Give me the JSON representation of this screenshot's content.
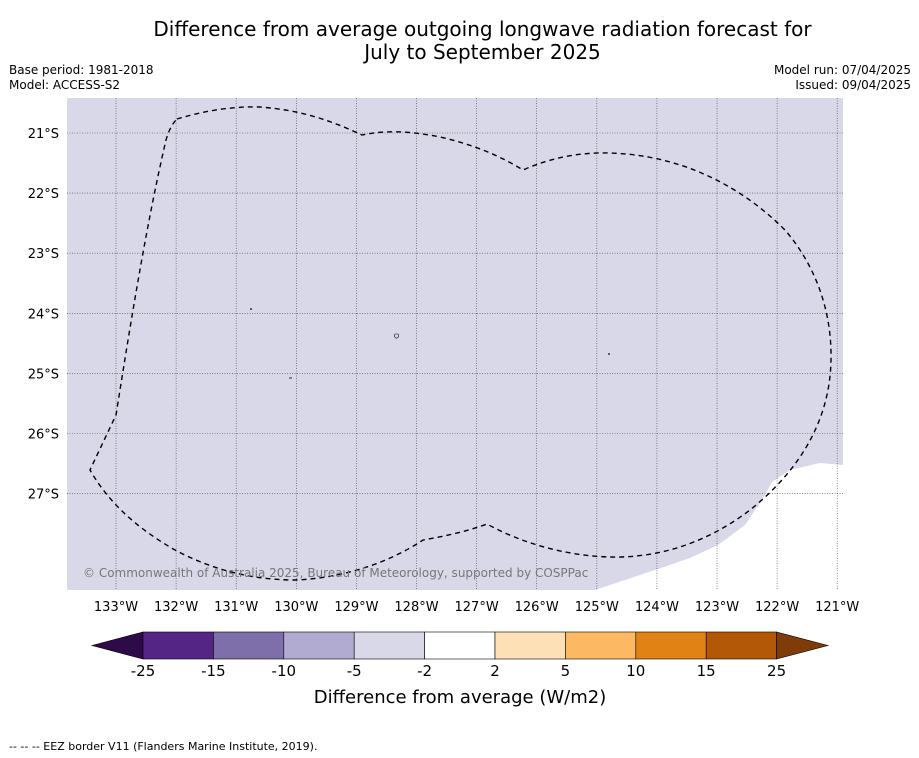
{
  "title": {
    "line1": "Difference from average outgoing longwave radiation forecast for",
    "line2": "July to September 2025"
  },
  "meta": {
    "base_period": "Base period: 1981-2018",
    "model": "Model: ACCESS-S2",
    "model_run": "Model run: 07/04/2025",
    "issued": "Issued: 09/04/2025"
  },
  "map": {
    "lon_labels": [
      "133°W",
      "132°W",
      "131°W",
      "130°W",
      "129°W",
      "128°W",
      "127°W",
      "126°W",
      "125°W",
      "124°W",
      "123°W",
      "122°W",
      "121°W"
    ],
    "lat_labels": [
      "21°S",
      "22°S",
      "23°S",
      "24°S",
      "25°S",
      "26°S",
      "27°S"
    ],
    "fill_color": "#d8d8e9",
    "copyright": "© Commonwealth of Australia 2025, Bureau of Meteorology, supported by COSPPac"
  },
  "colorbar": {
    "ticks": [
      "-25",
      "-15",
      "-10",
      "-5",
      "-2",
      "2",
      "5",
      "10",
      "15",
      "25"
    ],
    "label": "Difference from average (W/m2)",
    "colors": [
      "#2e0a4a",
      "#552586",
      "#7e6fab",
      "#b1abd2",
      "#d8d8e9",
      "#ffffff",
      "#fee0b6",
      "#fdb863",
      "#e08214",
      "#b35806",
      "#7f3b08"
    ]
  },
  "footer": "--  --  -- EEZ border V11 (Flanders Marine Institute, 2019)."
}
